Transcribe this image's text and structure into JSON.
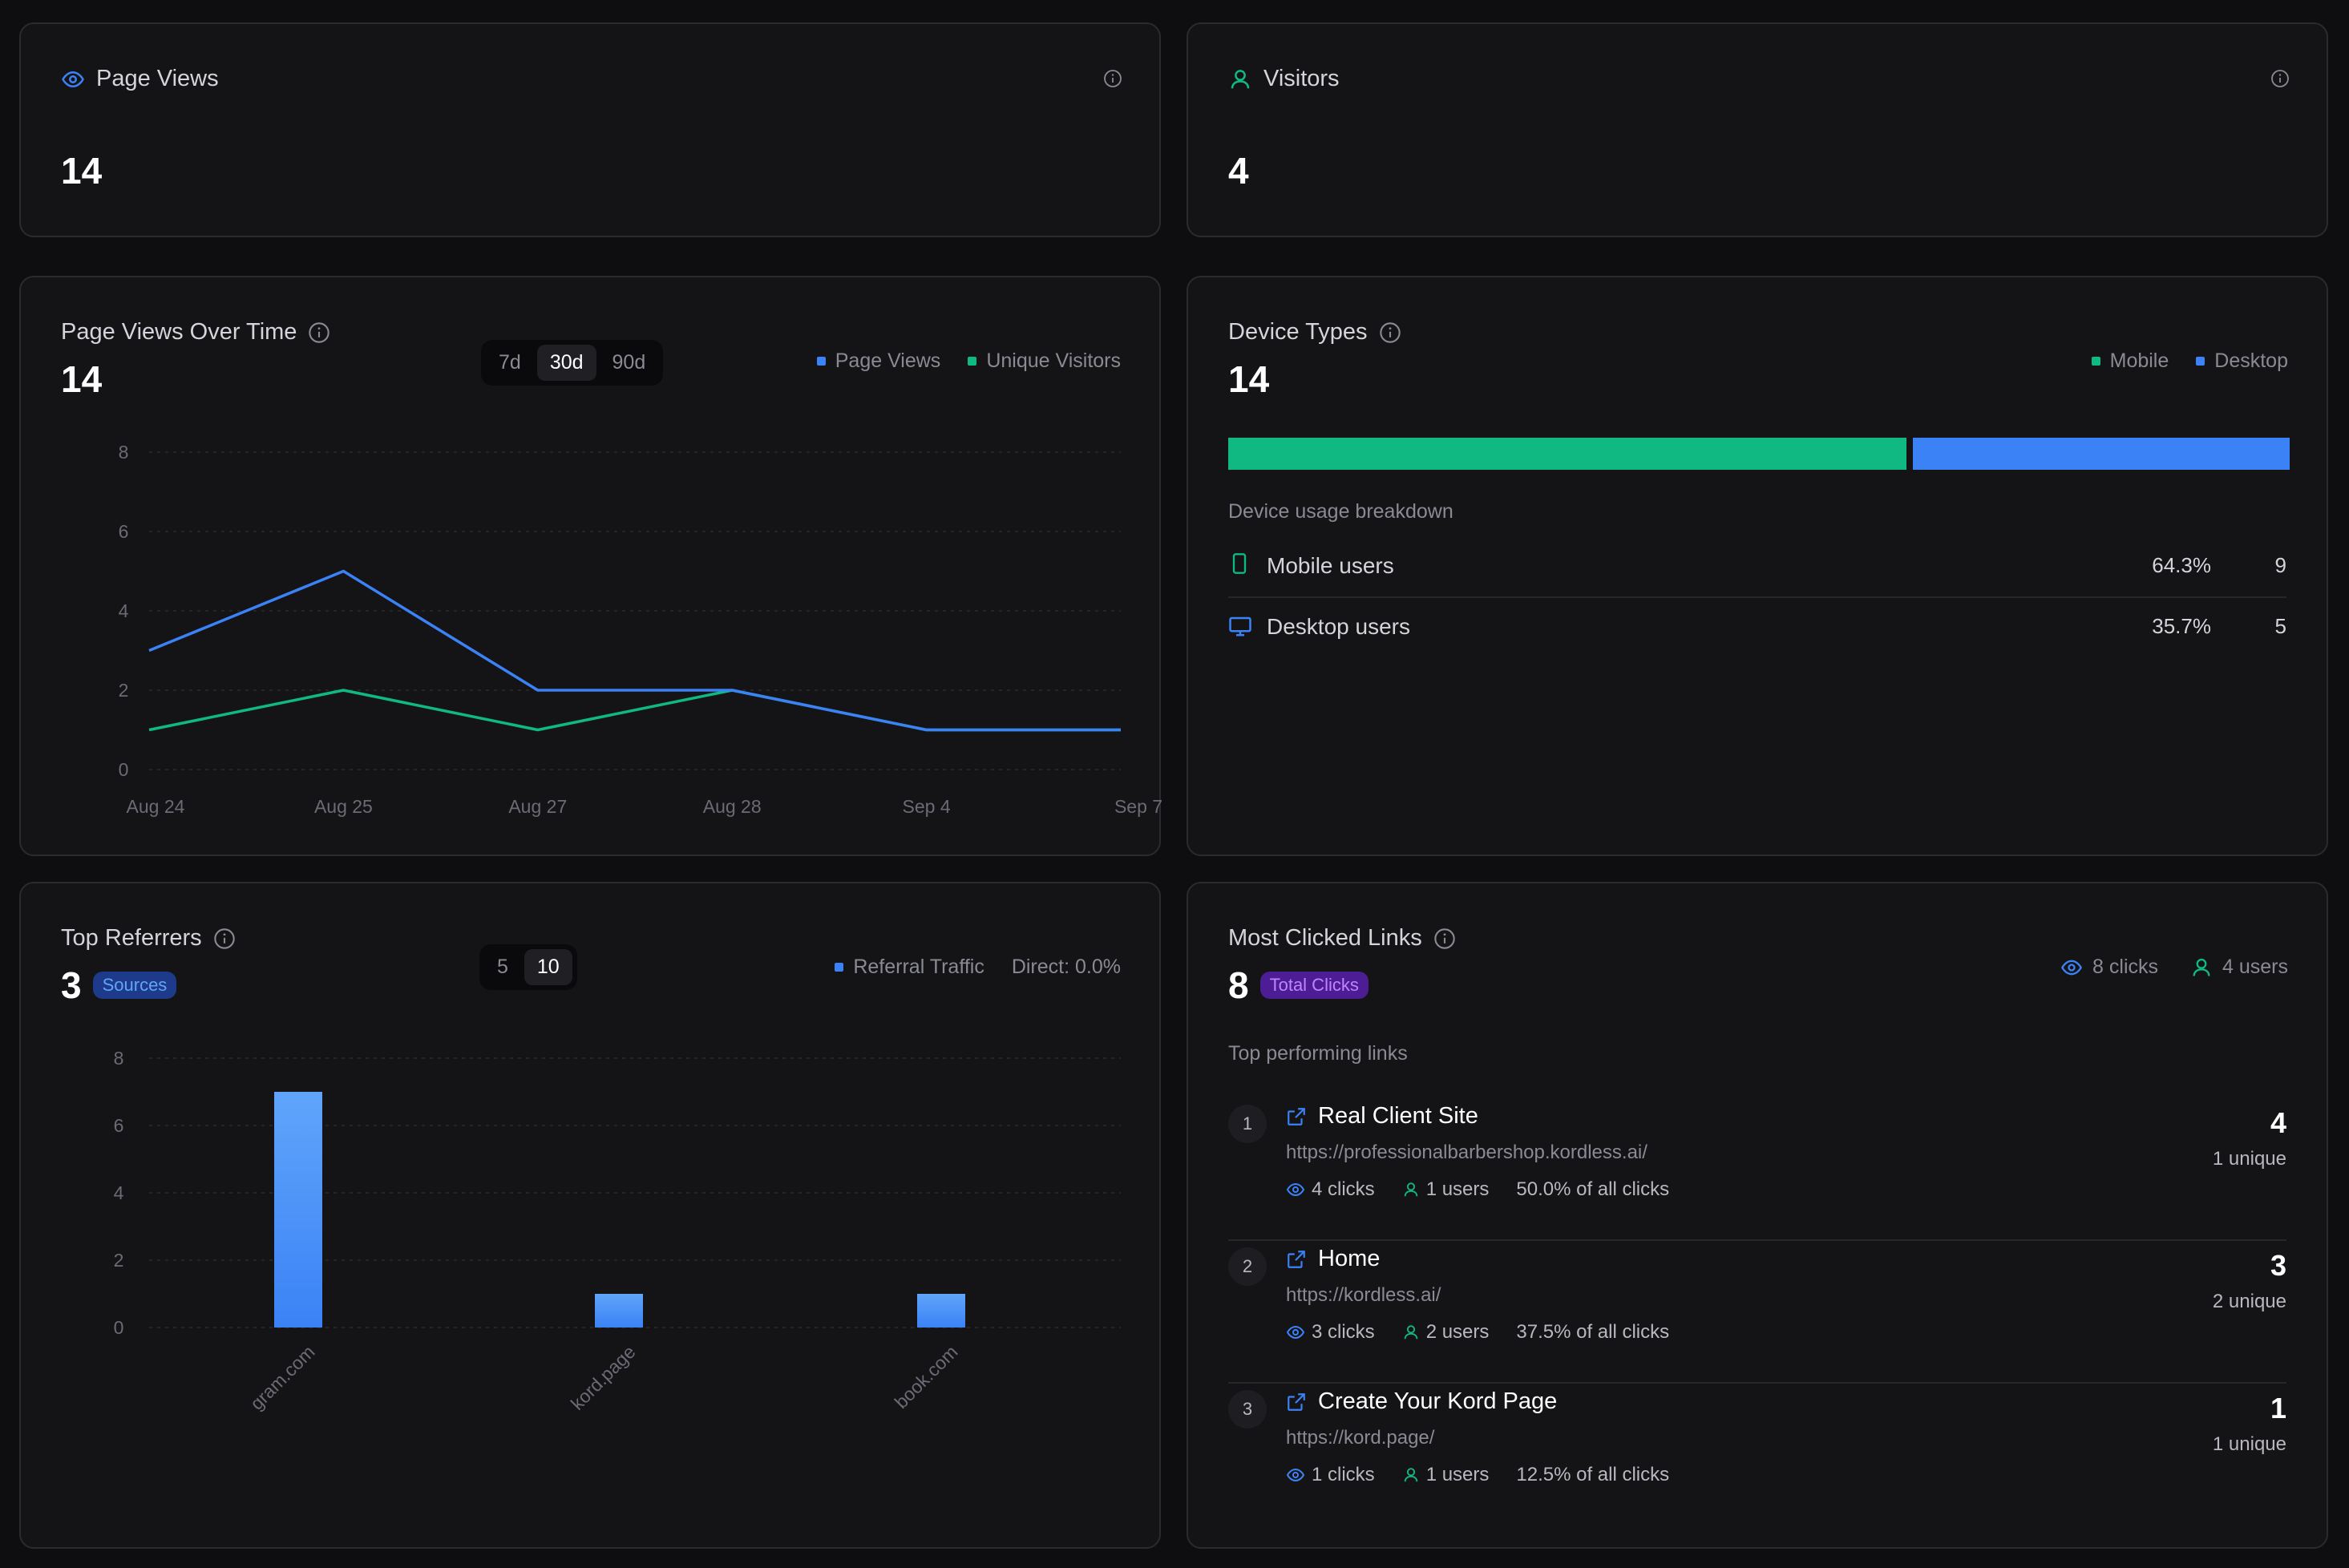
{
  "page_views_card": {
    "title": "Page Views",
    "value": "14"
  },
  "visitors_card": {
    "title": "Visitors",
    "value": "4"
  },
  "pv_over_time": {
    "title": "Page Views Over Time",
    "value": "14",
    "ranges": [
      "7d",
      "30d",
      "90d"
    ],
    "active_range": "30d",
    "legend": [
      "Page Views",
      "Unique Visitors"
    ]
  },
  "device_types": {
    "title": "Device Types",
    "value": "14",
    "legend": [
      "Mobile",
      "Desktop"
    ],
    "subtitle": "Device usage breakdown",
    "rows": [
      {
        "label": "Mobile users",
        "percent": "64.3%",
        "count": "9"
      },
      {
        "label": "Desktop users",
        "percent": "35.7%",
        "count": "5"
      }
    ],
    "mobile_fraction": 0.643
  },
  "top_referrers": {
    "title": "Top Referrers",
    "value": "3",
    "badge": "Sources",
    "ranges": [
      "5",
      "10"
    ],
    "active_range": "10",
    "legend": "Referral Traffic",
    "direct": "Direct: 0.0%"
  },
  "most_clicked": {
    "title": "Most Clicked Links",
    "value": "8",
    "badge": "Total Clicks",
    "summary_clicks": "8 clicks",
    "summary_users": "4 users",
    "subtitle": "Top performing links",
    "links": [
      {
        "rank": "1",
        "title": "Real Client Site",
        "url": "https://professionalbarbershop.kordless.ai/",
        "clicks": "4 clicks",
        "users": "1 users",
        "share": "50.0% of all clicks",
        "count": "4",
        "unique": "1 unique"
      },
      {
        "rank": "2",
        "title": "Home",
        "url": "https://kordless.ai/",
        "clicks": "3 clicks",
        "users": "2 users",
        "share": "37.5% of all clicks",
        "count": "3",
        "unique": "2 unique"
      },
      {
        "rank": "3",
        "title": "Create Your Kord Page",
        "url": "https://kord.page/",
        "clicks": "1 clicks",
        "users": "1 users",
        "share": "12.5% of all clicks",
        "count": "1",
        "unique": "1 unique"
      }
    ]
  },
  "colors": {
    "blue": "#3b82f6",
    "green": "#10b981",
    "purple": "#a855f7"
  },
  "chart_data": [
    {
      "type": "line",
      "categories": [
        "Aug 24",
        "Aug 25",
        "Aug 27",
        "Aug 28",
        "Sep 4",
        "Sep 7"
      ],
      "series": [
        {
          "name": "Page Views",
          "values": [
            3,
            5,
            2,
            2,
            1,
            1
          ]
        },
        {
          "name": "Unique Visitors",
          "values": [
            1,
            2,
            1,
            2,
            1,
            1
          ]
        }
      ],
      "yticks": [
        "0",
        "2",
        "4",
        "6",
        "8"
      ],
      "ylim": [
        0,
        8
      ],
      "grid": true
    },
    {
      "type": "bar",
      "categories": [
        "gram.com",
        "kord.page",
        "book.com"
      ],
      "series": [
        {
          "name": "Referral Traffic",
          "values": [
            7,
            1,
            1
          ]
        }
      ],
      "yticks": [
        "0",
        "2",
        "4",
        "6",
        "8"
      ],
      "ylim": [
        0,
        8
      ],
      "grid": true
    }
  ]
}
